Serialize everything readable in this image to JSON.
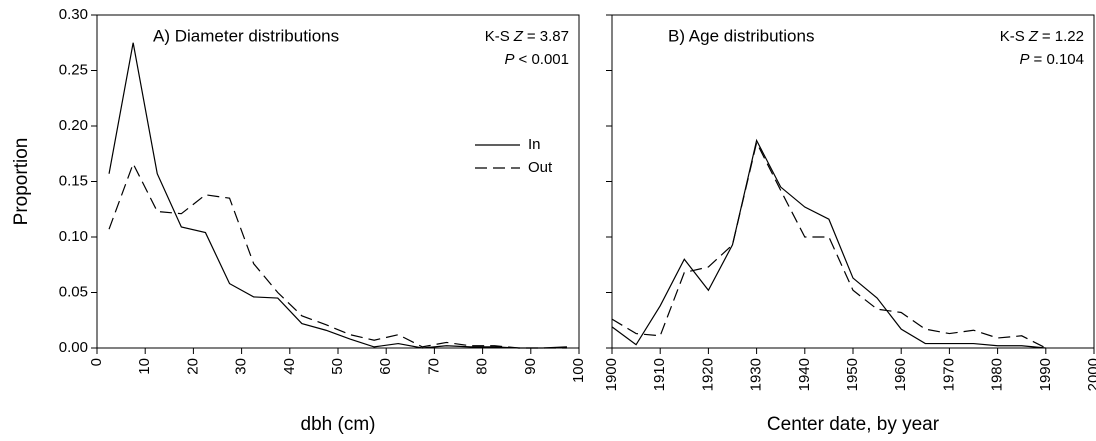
{
  "chart_data": [
    {
      "type": "line",
      "title": "A) Diameter distributions",
      "xlabel": "dbh (cm)",
      "ylabel": "Proportion",
      "stats": [
        {
          "prefix": "K-S",
          "symbol": "Z",
          "rest": "= 3.87"
        },
        {
          "prefix": "",
          "symbol": "P",
          "rest": "< 0.001"
        }
      ],
      "x": [
        2.5,
        7.5,
        12.5,
        17.5,
        22.5,
        27.5,
        32.5,
        37.5,
        42.5,
        47.5,
        52.5,
        57.5,
        62.5,
        67.5,
        72.5,
        77.5,
        82.5,
        87.5,
        92.5,
        97.5
      ],
      "series": [
        {
          "name": "In",
          "color": "#000000",
          "dash": "solid",
          "values": [
            0.157,
            0.275,
            0.157,
            0.109,
            0.104,
            0.058,
            0.046,
            0.045,
            0.022,
            0.016,
            0.008,
            0.001,
            0.004,
            0.0,
            0.002,
            0.001,
            0.001,
            0.0,
            0.0,
            0.001
          ]
        },
        {
          "name": "Out",
          "color": "#000000",
          "dash": "dashed",
          "values": [
            0.107,
            0.166,
            0.123,
            0.121,
            0.138,
            0.135,
            0.076,
            0.05,
            0.029,
            0.021,
            0.012,
            0.007,
            0.012,
            0.001,
            0.005,
            0.002,
            0.002,
            0.0,
            0.0,
            0.0
          ]
        }
      ],
      "legend": true,
      "xlim": [
        0,
        100
      ],
      "xticks": [
        0,
        10,
        20,
        30,
        40,
        50,
        60,
        70,
        80,
        90,
        100
      ],
      "ylim": [
        0,
        0.3
      ],
      "yticks": [
        {
          "value": 0,
          "label": "0.00"
        },
        {
          "value": 0.05,
          "label": "0.05"
        },
        {
          "value": 0.1,
          "label": "0.10"
        },
        {
          "value": 0.15,
          "label": "0.15"
        },
        {
          "value": 0.2,
          "label": "0.20"
        },
        {
          "value": 0.25,
          "label": "0.25"
        },
        {
          "value": 0.3,
          "label": "0.30"
        }
      ]
    },
    {
      "type": "line",
      "title": "B) Age distributions",
      "xlabel": "Center date, by year",
      "stats": [
        {
          "prefix": "K-S",
          "symbol": "Z",
          "rest": "= 1.22"
        },
        {
          "prefix": "",
          "symbol": "P",
          "rest": "= 0.104"
        }
      ],
      "x": [
        1900,
        1905,
        1910,
        1915,
        1920,
        1925,
        1930,
        1935,
        1940,
        1945,
        1950,
        1955,
        1960,
        1965,
        1970,
        1975,
        1980,
        1985,
        1990
      ],
      "series": [
        {
          "name": "In",
          "color": "#000000",
          "dash": "solid",
          "values": [
            0.019,
            0.003,
            0.038,
            0.08,
            0.052,
            0.093,
            0.187,
            0.145,
            0.127,
            0.116,
            0.063,
            0.045,
            0.017,
            0.004,
            0.004,
            0.004,
            0.002,
            0.002,
            0.0
          ]
        },
        {
          "name": "Out",
          "color": "#000000",
          "dash": "dashed",
          "values": [
            0.026,
            0.013,
            0.011,
            0.068,
            0.073,
            0.093,
            0.185,
            0.142,
            0.1,
            0.1,
            0.052,
            0.035,
            0.032,
            0.017,
            0.013,
            0.016,
            0.009,
            0.011,
            0.0
          ]
        }
      ],
      "legend": false,
      "xlim": [
        1900,
        2000
      ],
      "xticks": [
        1900,
        1910,
        1920,
        1930,
        1940,
        1950,
        1960,
        1970,
        1980,
        1990,
        2000
      ],
      "ylim": [
        0,
        0.3
      ],
      "yticks": [
        0,
        0.05,
        0.1,
        0.15,
        0.2,
        0.25,
        0.3
      ],
      "ytick_labels": false
    }
  ]
}
